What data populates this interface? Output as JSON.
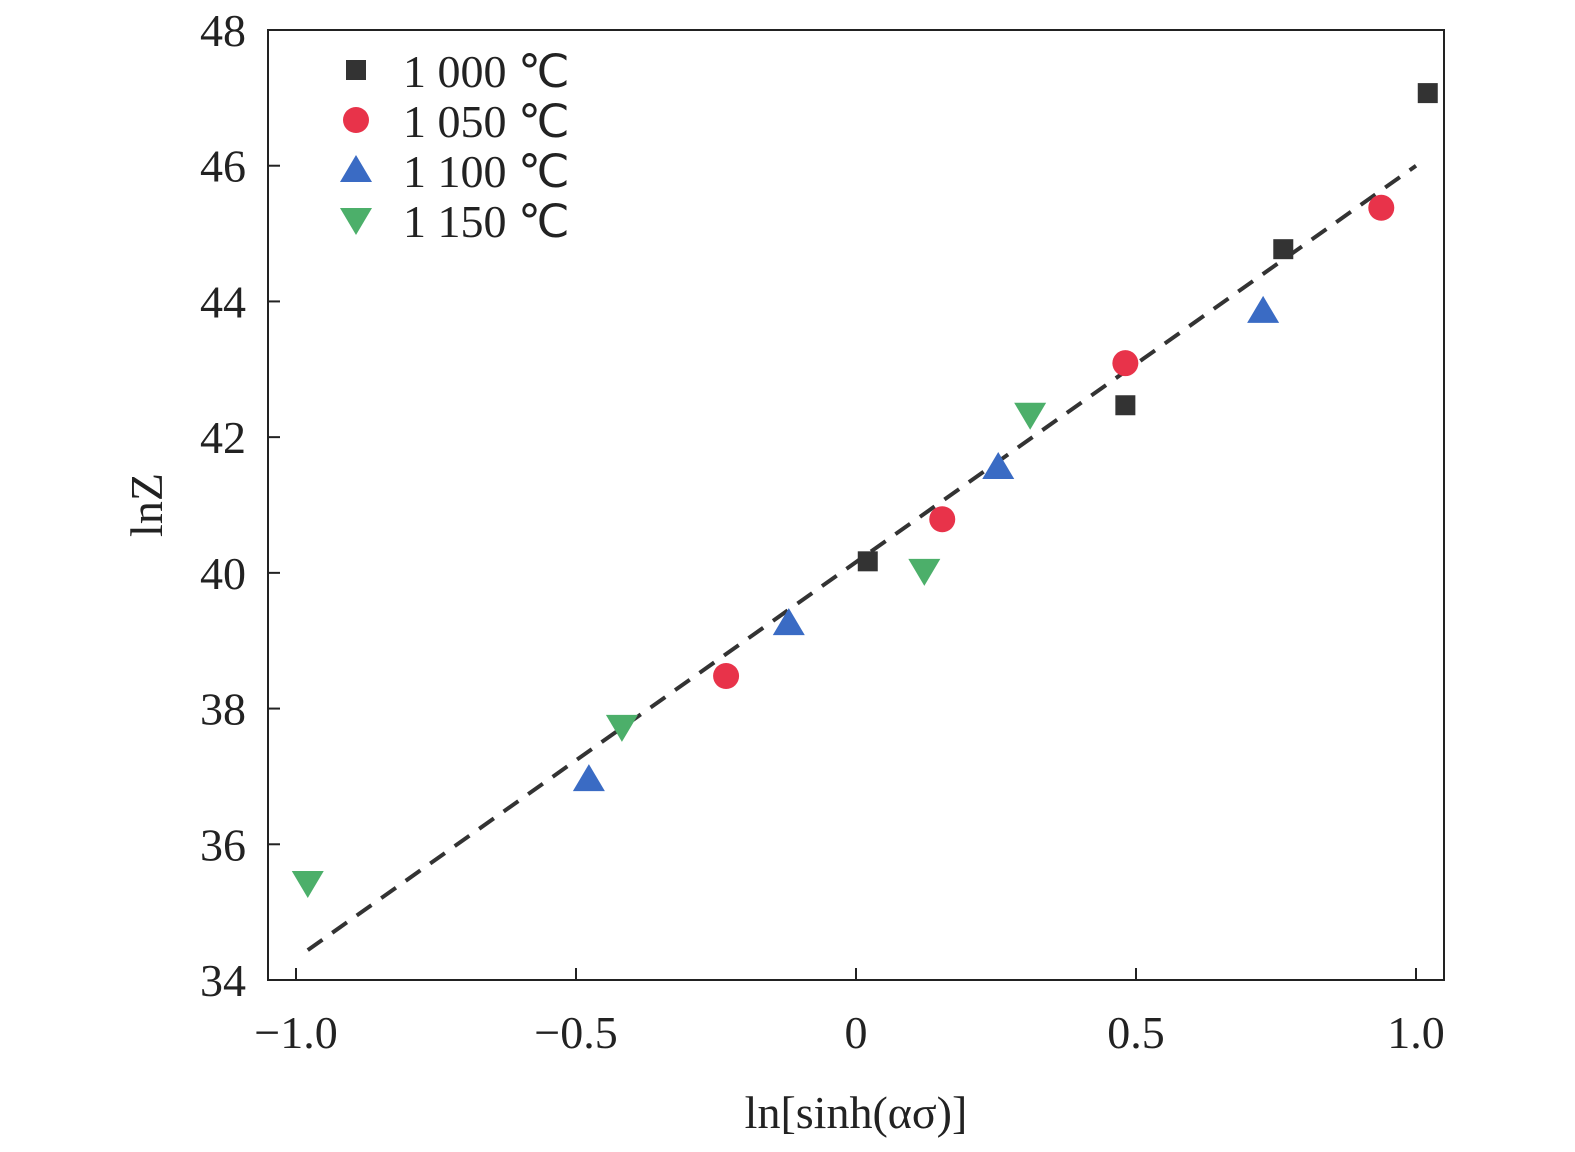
{
  "chart_data": {
    "type": "scatter",
    "title": "",
    "xlabel": "ln[sinh(ασ)]",
    "ylabel": "lnZ",
    "xlim": [
      -1.05,
      1.05
    ],
    "ylim": [
      34,
      48
    ],
    "xticks": [
      -1.0,
      -0.5,
      0,
      0.5,
      1.0
    ],
    "xtick_labels": [
      "−1.0",
      "−0.5",
      "0",
      "0.5",
      "1.0"
    ],
    "yticks": [
      34,
      36,
      38,
      40,
      42,
      44,
      46,
      48
    ],
    "ytick_labels": [
      "34",
      "36",
      "38",
      "40",
      "42",
      "44",
      "46",
      "48"
    ],
    "grid": false,
    "legend_position": "top-left",
    "series": [
      {
        "name": "1 000 ℃",
        "marker": "square",
        "color": "#333333",
        "x": [
          0.021,
          0.481,
          0.763,
          1.021
        ],
        "y": [
          40.17,
          42.47,
          44.77,
          47.07
        ]
      },
      {
        "name": "1 050 ℃",
        "marker": "circle",
        "color": "#e8334a",
        "x": [
          -0.232,
          0.154,
          0.481,
          0.938
        ],
        "y": [
          38.48,
          40.79,
          43.09,
          45.38
        ]
      },
      {
        "name": "1 100 ℃",
        "marker": "triangle-up",
        "color": "#3a6bc4",
        "x": [
          -0.477,
          -0.12,
          0.254,
          0.727
        ],
        "y": [
          36.96,
          39.26,
          41.56,
          43.86
        ]
      },
      {
        "name": "1 150 ℃",
        "marker": "triangle-down",
        "color": "#4caf6a",
        "x": [
          -0.979,
          -0.418,
          0.122,
          0.311
        ],
        "y": [
          35.43,
          37.73,
          40.03,
          42.33
        ]
      }
    ],
    "fit_line": {
      "style": "dashed",
      "color": "#333333",
      "x": [
        -0.979,
        1.0
      ],
      "y": [
        34.44,
        46.0
      ]
    }
  }
}
